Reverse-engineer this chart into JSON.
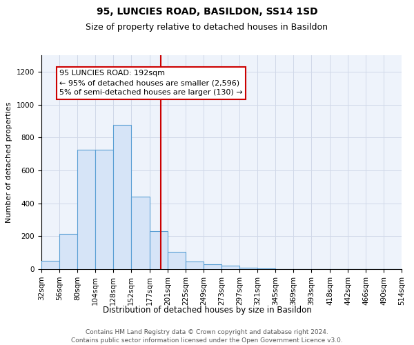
{
  "title": "95, LUNCIES ROAD, BASILDON, SS14 1SD",
  "subtitle": "Size of property relative to detached houses in Basildon",
  "xlabel": "Distribution of detached houses by size in Basildon",
  "ylabel": "Number of detached properties",
  "bin_edges": [
    32,
    56,
    80,
    104,
    128,
    152,
    177,
    201,
    225,
    249,
    273,
    297,
    321,
    345,
    369,
    393,
    418,
    442,
    466,
    490,
    514
  ],
  "bar_heights": [
    50,
    215,
    725,
    725,
    875,
    440,
    230,
    105,
    45,
    30,
    20,
    10,
    5,
    0,
    0,
    0,
    0,
    0,
    0,
    0
  ],
  "bar_facecolor": "#d6e4f7",
  "bar_edgecolor": "#5a9fd4",
  "grid_color": "#d0d8e8",
  "background_color": "#eef3fb",
  "vline_x": 192,
  "vline_color": "#cc0000",
  "annotation_text": "95 LUNCIES ROAD: 192sqm\n← 95% of detached houses are smaller (2,596)\n5% of semi-detached houses are larger (130) →",
  "annotation_box_color": "white",
  "annotation_box_edgecolor": "#cc0000",
  "ylim": [
    0,
    1300
  ],
  "yticks": [
    0,
    200,
    400,
    600,
    800,
    1000,
    1200
  ],
  "title_fontsize": 10,
  "subtitle_fontsize": 9,
  "xlabel_fontsize": 8.5,
  "ylabel_fontsize": 8,
  "tick_fontsize": 7.5,
  "annotation_fontsize": 8,
  "footer_text": "Contains HM Land Registry data © Crown copyright and database right 2024.\nContains public sector information licensed under the Open Government Licence v3.0.",
  "footer_fontsize": 6.5
}
